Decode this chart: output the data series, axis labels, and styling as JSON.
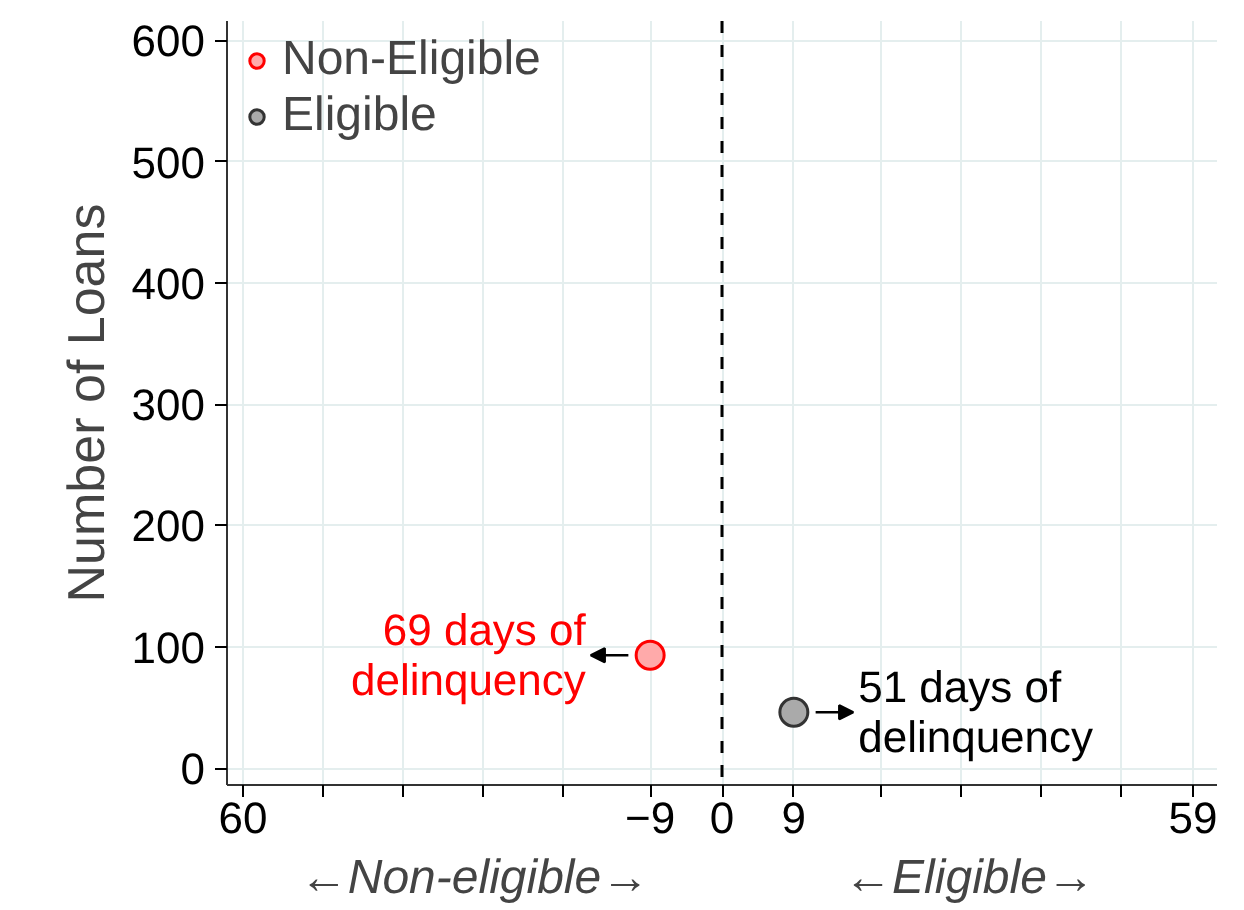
{
  "chart_data": {
    "type": "scatter",
    "ylabel": "Number of Loans",
    "series": [
      {
        "name": "Non-Eligible",
        "color": "#ffaaaa",
        "x": [
          -9
        ],
        "values": [
          93
        ]
      },
      {
        "name": "Eligible",
        "color": "#aaaaaa",
        "x": [
          9
        ],
        "values": [
          46
        ]
      }
    ],
    "xlim": [
      -62,
      62
    ],
    "ylim": [
      -14,
      616
    ],
    "xticks": [
      {
        "value": -60,
        "label": "60"
      },
      {
        "value": -50,
        "label": null
      },
      {
        "value": -40,
        "label": null
      },
      {
        "value": -30,
        "label": null
      },
      {
        "value": -20,
        "label": null
      },
      -9,
      0,
      9,
      {
        "value": 20,
        "label": null
      },
      {
        "value": 30,
        "label": null
      },
      {
        "value": 40,
        "label": null
      },
      {
        "value": 50,
        "label": null
      },
      59
    ],
    "yticks": [
      0,
      100,
      200,
      300,
      400,
      500,
      600
    ],
    "ref_lines": [
      {
        "axis": "x",
        "value": 0,
        "color": "#000000",
        "line_style": "dashed"
      }
    ],
    "annotations": [
      {
        "text": "69 days of delinquency",
        "x": -9,
        "y": 93
      },
      {
        "text": "51 days of delinquency",
        "x": 9,
        "y": 46
      },
      "←Non-eligible→",
      "←Eligible→"
    ],
    "grid": true,
    "legend": "top left",
    "marker": "circle"
  }
}
